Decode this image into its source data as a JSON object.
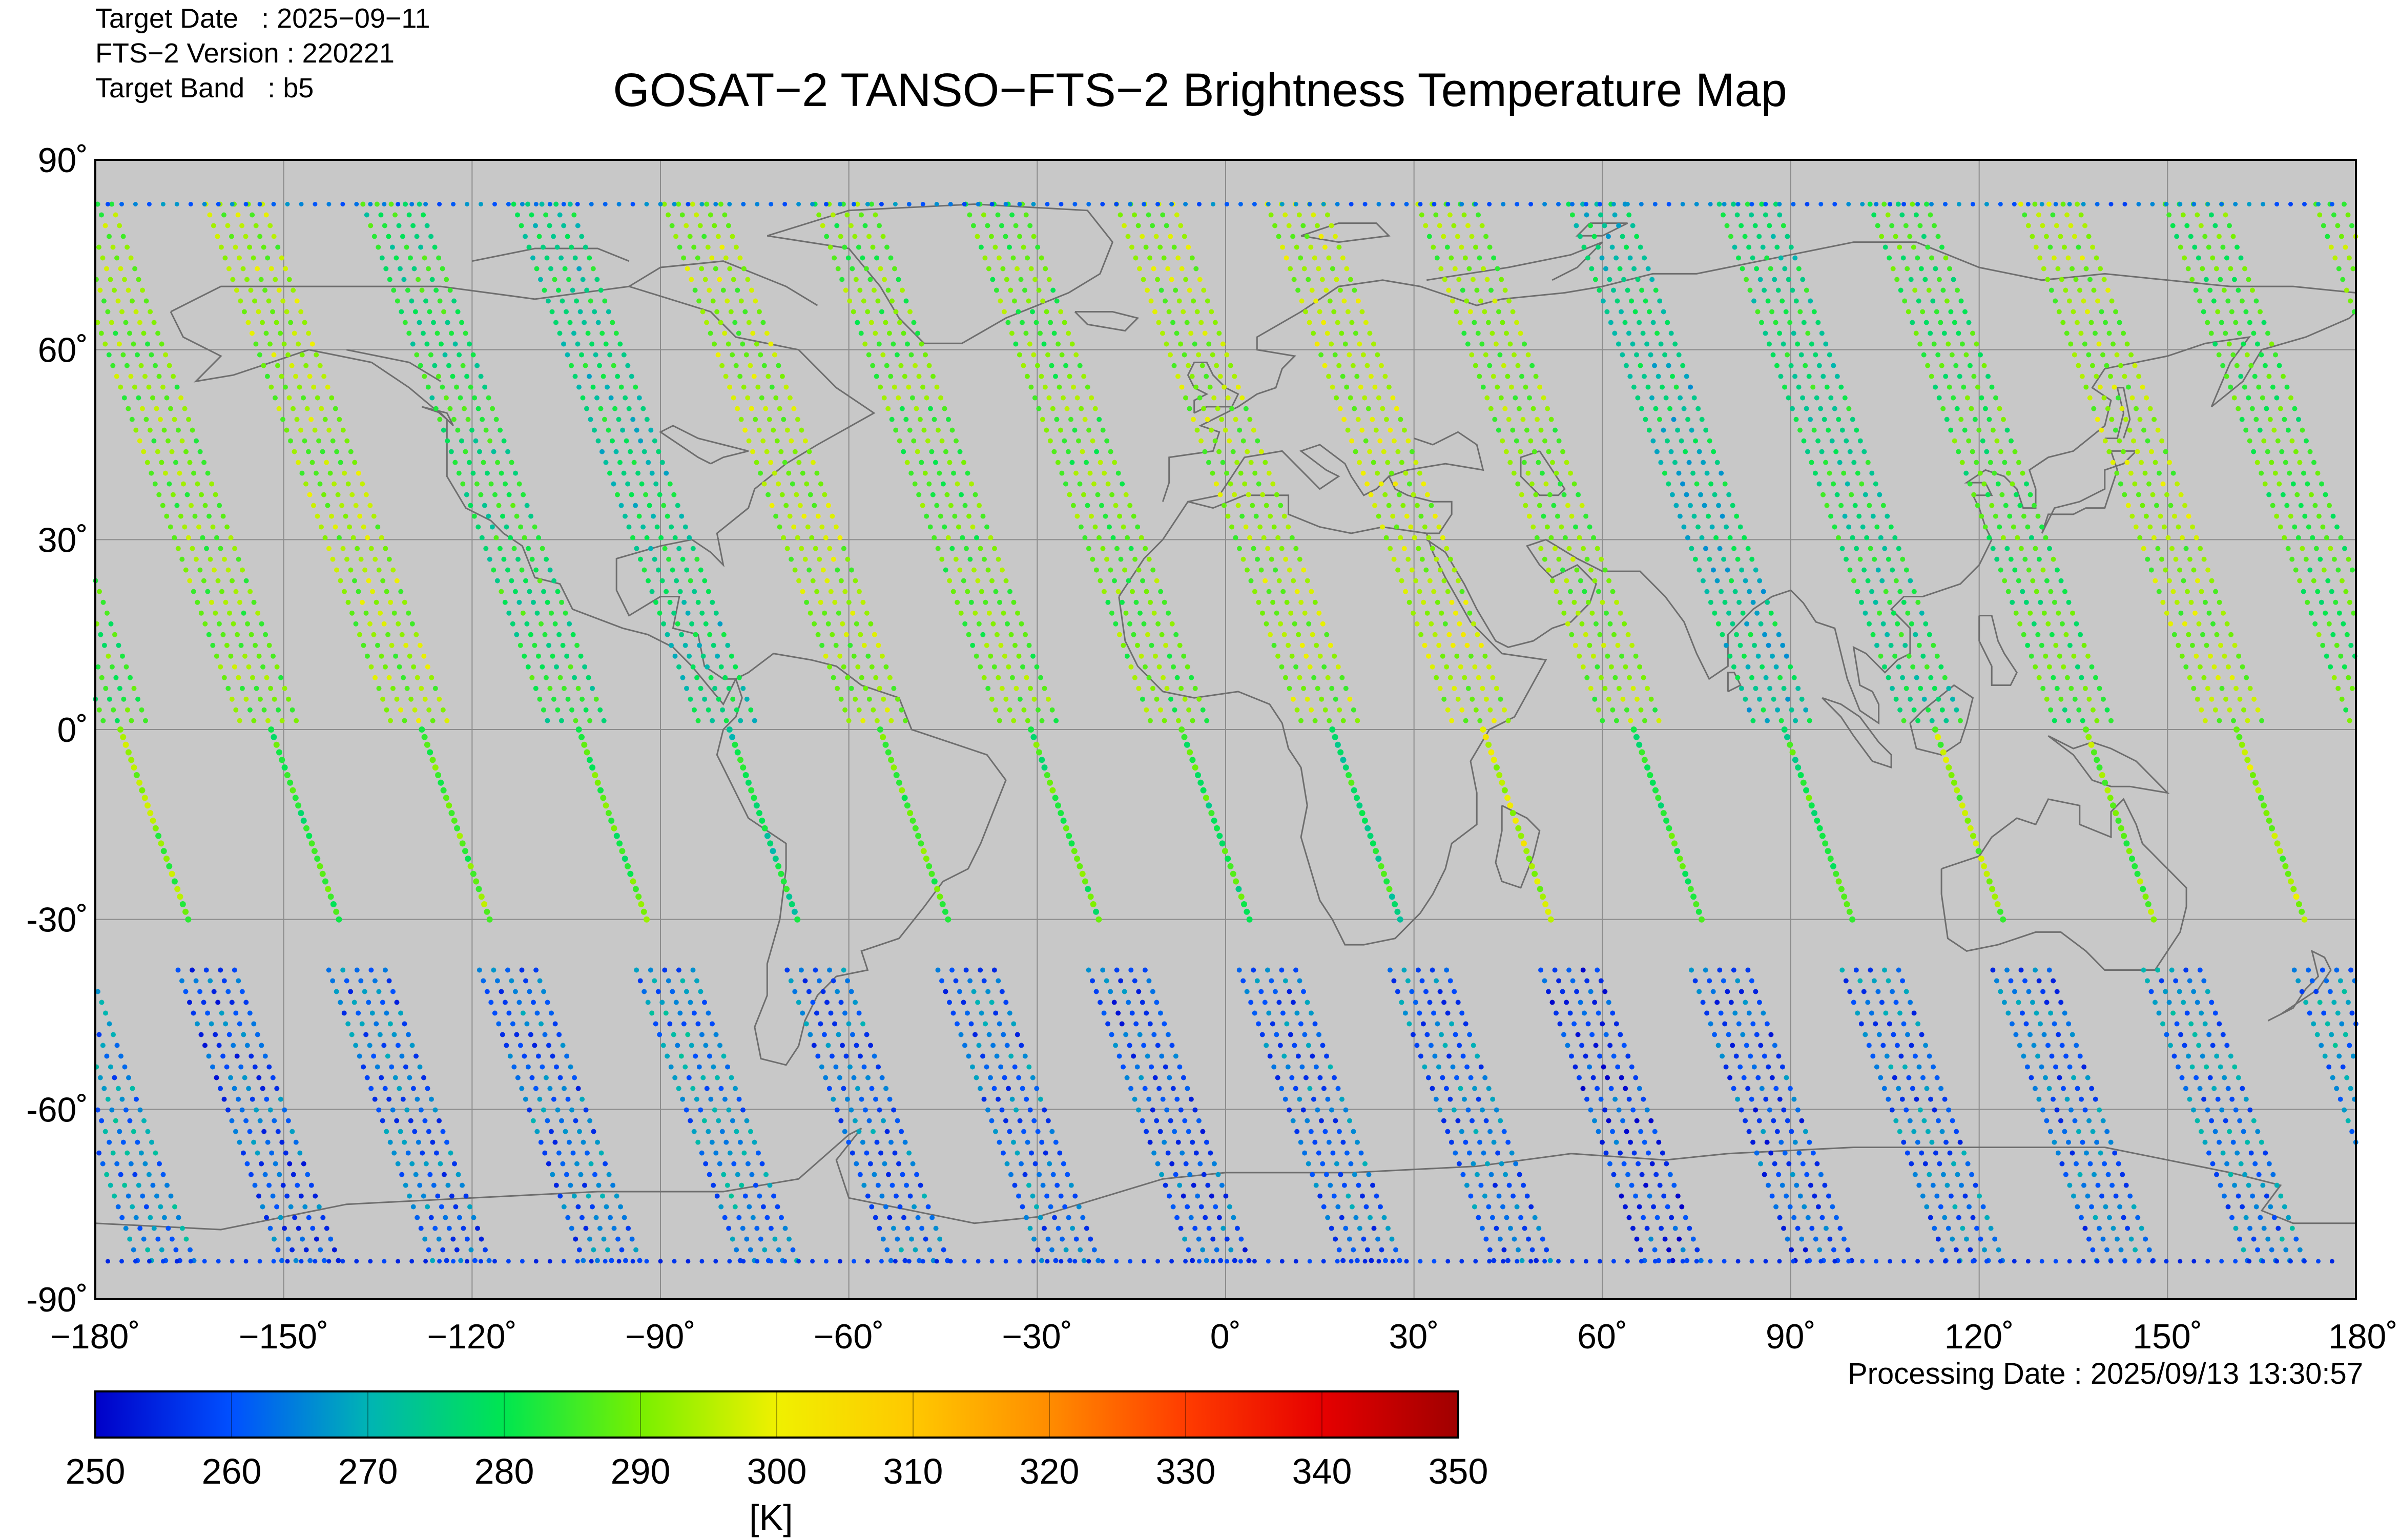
{
  "header": {
    "target_date": "Target Date   : 2025−09−11",
    "fts_version": "FTS−2 Version : 220221",
    "target_band": "Target Band   : b5"
  },
  "title": "GOSAT−2 TANSO−FTS−2 Brightness Temperature Map",
  "processing_date": "Processing Date : 2025/09/13 13:30:57",
  "axes": {
    "lat_ticks": [
      "90˚",
      "60˚",
      "30˚",
      "0˚",
      "-30˚",
      "-60˚",
      "-90˚"
    ],
    "lon_ticks": [
      "−180˚",
      "−150˚",
      "−120˚",
      "−90˚",
      "−60˚",
      "−30˚",
      "0˚",
      "30˚",
      "60˚",
      "90˚",
      "120˚",
      "150˚",
      "180˚"
    ]
  },
  "colorbar": {
    "ticks": [
      "250",
      "260",
      "270",
      "280",
      "290",
      "300",
      "310",
      "320",
      "330",
      "340",
      "350"
    ],
    "unit": "[K]",
    "stops": [
      "#0000c8",
      "#0050ff",
      "#00b4b4",
      "#00e650",
      "#78f000",
      "#f0f000",
      "#ffc800",
      "#ff8c00",
      "#ff3c00",
      "#e60000",
      "#a00000"
    ]
  },
  "colors": {
    "map_background": "#c8c8c8",
    "grid": "#8c8c8c",
    "coast": "#6e6e6e"
  },
  "chart_data": {
    "type": "scatter",
    "title": "GOSAT−2 TANSO−FTS−2 Brightness Temperature Map",
    "xlim": [
      -180,
      180
    ],
    "ylim": [
      -90,
      90
    ],
    "color_range": [
      250,
      350
    ],
    "color_unit": "K",
    "grid": true,
    "orbit_tracks": [
      {
        "lon_eq": -176,
        "segments": [
          {
            "lat_from": 83,
            "lat_to": 0,
            "temp": 285
          },
          {
            "lat_from": 0,
            "lat_to": -30,
            "temp": 290
          },
          {
            "lat_from": -38,
            "lat_to": -85,
            "temp": 260
          }
        ]
      },
      {
        "lon_eq": -152,
        "segments": [
          {
            "lat_from": 83,
            "lat_to": 0,
            "temp": 290
          },
          {
            "lat_from": 0,
            "lat_to": -30,
            "temp": 285
          },
          {
            "lat_from": -38,
            "lat_to": -85,
            "temp": 262
          }
        ]
      },
      {
        "lon_eq": -128,
        "segments": [
          {
            "lat_from": 83,
            "lat_to": 0,
            "temp": 292
          },
          {
            "lat_from": 0,
            "lat_to": -30,
            "temp": 288
          },
          {
            "lat_from": -38,
            "lat_to": -85,
            "temp": 262
          }
        ]
      },
      {
        "lon_eq": -103,
        "segments": [
          {
            "lat_from": 83,
            "lat_to": 0,
            "temp": 280
          },
          {
            "lat_from": 0,
            "lat_to": -30,
            "temp": 285
          },
          {
            "lat_from": -38,
            "lat_to": -85,
            "temp": 265
          }
        ]
      },
      {
        "lon_eq": -79,
        "segments": [
          {
            "lat_from": 83,
            "lat_to": 0,
            "temp": 276
          },
          {
            "lat_from": 0,
            "lat_to": -30,
            "temp": 278
          },
          {
            "lat_from": -38,
            "lat_to": -85,
            "temp": 262
          }
        ]
      },
      {
        "lon_eq": -55,
        "segments": [
          {
            "lat_from": 83,
            "lat_to": 0,
            "temp": 292
          },
          {
            "lat_from": 0,
            "lat_to": -30,
            "temp": 286
          },
          {
            "lat_from": -38,
            "lat_to": -85,
            "temp": 262
          }
        ]
      },
      {
        "lon_eq": -31,
        "segments": [
          {
            "lat_from": 83,
            "lat_to": 0,
            "temp": 288
          },
          {
            "lat_from": 0,
            "lat_to": -30,
            "temp": 284
          },
          {
            "lat_from": -38,
            "lat_to": -85,
            "temp": 260
          }
        ]
      },
      {
        "lon_eq": -7,
        "segments": [
          {
            "lat_from": 83,
            "lat_to": 0,
            "temp": 288
          },
          {
            "lat_from": 0,
            "lat_to": -30,
            "temp": 282
          },
          {
            "lat_from": -38,
            "lat_to": -85,
            "temp": 262
          }
        ]
      },
      {
        "lon_eq": 17,
        "segments": [
          {
            "lat_from": 83,
            "lat_to": 0,
            "temp": 292
          },
          {
            "lat_from": 0,
            "lat_to": -30,
            "temp": 280
          },
          {
            "lat_from": -38,
            "lat_to": -85,
            "temp": 262
          }
        ]
      },
      {
        "lon_eq": 41,
        "segments": [
          {
            "lat_from": 83,
            "lat_to": 0,
            "temp": 294
          },
          {
            "lat_from": 0,
            "lat_to": -30,
            "temp": 296
          },
          {
            "lat_from": -38,
            "lat_to": -85,
            "temp": 258
          }
        ]
      },
      {
        "lon_eq": 65,
        "segments": [
          {
            "lat_from": 83,
            "lat_to": 0,
            "temp": 290
          },
          {
            "lat_from": 0,
            "lat_to": -30,
            "temp": 282
          },
          {
            "lat_from": -38,
            "lat_to": -85,
            "temp": 260
          }
        ]
      },
      {
        "lon_eq": 89,
        "segments": [
          {
            "lat_from": 83,
            "lat_to": 0,
            "temp": 274
          },
          {
            "lat_from": 0,
            "lat_to": -30,
            "temp": 282
          },
          {
            "lat_from": -38,
            "lat_to": -85,
            "temp": 262
          }
        ]
      },
      {
        "lon_eq": 113,
        "segments": [
          {
            "lat_from": 83,
            "lat_to": 0,
            "temp": 278
          },
          {
            "lat_from": 0,
            "lat_to": -30,
            "temp": 292
          },
          {
            "lat_from": -38,
            "lat_to": -85,
            "temp": 262
          }
        ]
      },
      {
        "lon_eq": 137,
        "segments": [
          {
            "lat_from": 83,
            "lat_to": 0,
            "temp": 284
          },
          {
            "lat_from": 0,
            "lat_to": -30,
            "temp": 290
          },
          {
            "lat_from": -38,
            "lat_to": -85,
            "temp": 264
          }
        ]
      },
      {
        "lon_eq": 161,
        "segments": [
          {
            "lat_from": 83,
            "lat_to": 0,
            "temp": 292
          },
          {
            "lat_from": 0,
            "lat_to": -30,
            "temp": 292
          },
          {
            "lat_from": -38,
            "lat_to": -85,
            "temp": 265
          }
        ]
      }
    ]
  }
}
